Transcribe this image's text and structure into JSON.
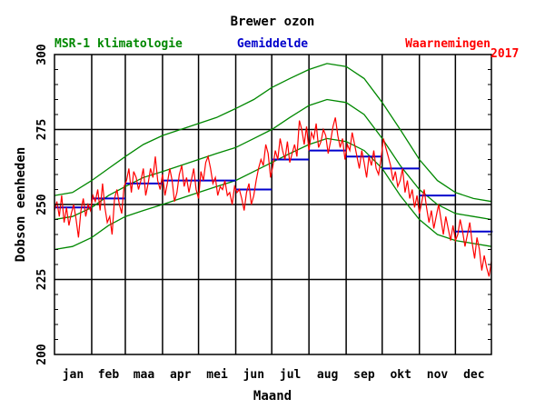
{
  "chart_data": {
    "type": "line",
    "title": "Brewer ozon",
    "ylabel": "Dobson eenheden",
    "xlabel": "Maand",
    "year_label": "2017",
    "ylim": [
      200,
      300
    ],
    "yticks": [
      200,
      225,
      250,
      275,
      300
    ],
    "yticklabels": [
      "200",
      "225",
      "250",
      "275",
      "300"
    ],
    "day_range": [
      1,
      365
    ],
    "months": [
      "jan",
      "feb",
      "maa",
      "apr",
      "mei",
      "jun",
      "jul",
      "aug",
      "sep",
      "okt",
      "nov",
      "dec"
    ],
    "grid": true,
    "legend": [
      {
        "label": "MSR-1 klimatologie",
        "color": "#008800"
      },
      {
        "label": "Gemiddelde",
        "color": "#0000cc"
      },
      {
        "label": "Waarnemingen",
        "color": "#ff0000"
      }
    ],
    "series": [
      {
        "name": "MSR-1 klimatologie",
        "role": "upper",
        "color": "#008800",
        "days": [
          1,
          16,
          32,
          46,
          60,
          75,
          91,
          106,
          121,
          136,
          152,
          167,
          182,
          197,
          213,
          228,
          244,
          259,
          274,
          289,
          305,
          320,
          335,
          350,
          365
        ],
        "values": [
          253,
          254,
          258,
          262,
          266,
          270,
          273,
          275,
          277,
          279,
          282,
          285,
          289,
          292,
          295,
          297,
          296,
          292,
          284,
          275,
          265,
          258,
          254,
          252,
          251
        ]
      },
      {
        "name": "MSR-1 klimatologie",
        "role": "mean",
        "color": "#008800",
        "days": [
          1,
          16,
          32,
          46,
          60,
          75,
          91,
          106,
          121,
          136,
          152,
          167,
          182,
          197,
          213,
          228,
          244,
          259,
          274,
          289,
          305,
          320,
          335,
          350,
          365
        ],
        "values": [
          245,
          246,
          249,
          253,
          256,
          259,
          261,
          263,
          265,
          267,
          269,
          272,
          275,
          279,
          283,
          285,
          284,
          280,
          272,
          263,
          255,
          250,
          247,
          246,
          245
        ]
      },
      {
        "name": "MSR-1 klimatologie",
        "role": "lower",
        "color": "#008800",
        "days": [
          1,
          16,
          32,
          46,
          60,
          75,
          91,
          106,
          121,
          136,
          152,
          167,
          182,
          197,
          213,
          228,
          244,
          259,
          274,
          289,
          305,
          320,
          335,
          350,
          365
        ],
        "values": [
          235,
          236,
          239,
          243,
          246,
          248,
          250,
          252,
          254,
          256,
          258,
          261,
          264,
          267,
          270,
          272,
          271,
          268,
          262,
          253,
          245,
          240,
          238,
          237,
          236
        ]
      },
      {
        "name": "Gemiddelde",
        "color": "#0000cc",
        "days": [
          [
            1,
            31
          ],
          [
            32,
            59
          ],
          [
            60,
            90
          ],
          [
            91,
            120
          ],
          [
            121,
            151
          ],
          [
            152,
            181
          ],
          [
            182,
            212
          ],
          [
            213,
            243
          ],
          [
            244,
            273
          ],
          [
            274,
            304
          ],
          [
            305,
            334
          ],
          [
            335,
            365
          ]
        ],
        "values": [
          249,
          252,
          257,
          258,
          258,
          255,
          265,
          268,
          266,
          262,
          253,
          241
        ]
      },
      {
        "name": "Waarnemingen",
        "color": "#ff0000",
        "days": [
          1,
          3,
          5,
          7,
          9,
          11,
          13,
          15,
          17,
          19,
          21,
          23,
          25,
          27,
          29,
          31,
          33,
          35,
          37,
          39,
          41,
          43,
          45,
          47,
          49,
          51,
          53,
          55,
          57,
          59,
          61,
          63,
          65,
          67,
          69,
          71,
          73,
          75,
          77,
          79,
          81,
          83,
          85,
          87,
          89,
          91,
          93,
          95,
          97,
          99,
          101,
          103,
          105,
          107,
          109,
          111,
          113,
          115,
          117,
          119,
          121,
          123,
          125,
          127,
          129,
          131,
          133,
          135,
          137,
          139,
          141,
          143,
          145,
          147,
          149,
          151,
          153,
          155,
          157,
          159,
          161,
          163,
          165,
          167,
          169,
          171,
          173,
          175,
          177,
          179,
          181,
          183,
          185,
          187,
          189,
          191,
          193,
          195,
          197,
          199,
          201,
          203,
          205,
          207,
          209,
          211,
          213,
          215,
          217,
          219,
          221,
          223,
          225,
          227,
          229,
          231,
          233,
          235,
          237,
          239,
          241,
          243,
          245,
          247,
          249,
          251,
          253,
          255,
          257,
          259,
          261,
          263,
          265,
          267,
          269,
          271,
          273,
          275,
          277,
          279,
          281,
          283,
          285,
          287,
          289,
          291,
          293,
          295,
          297,
          299,
          301,
          303,
          305,
          307,
          309,
          311,
          313,
          315,
          317,
          319,
          321,
          323,
          325,
          327,
          329,
          331,
          333,
          335,
          337,
          339,
          341,
          343,
          345,
          347,
          349,
          351,
          353,
          355,
          357,
          359,
          361,
          363,
          365
        ],
        "values": [
          248,
          251,
          246,
          253,
          244,
          249,
          243,
          247,
          250,
          245,
          239,
          248,
          252,
          246,
          250,
          248,
          253,
          251,
          255,
          248,
          257,
          249,
          244,
          246,
          240,
          252,
          255,
          250,
          247,
          256,
          258,
          262,
          254,
          261,
          259,
          255,
          258,
          262,
          253,
          257,
          262,
          259,
          266,
          258,
          255,
          260,
          253,
          257,
          262,
          258,
          251,
          254,
          260,
          263,
          256,
          259,
          254,
          258,
          262,
          255,
          252,
          261,
          258,
          264,
          266,
          262,
          257,
          259,
          253,
          256,
          255,
          258,
          253,
          254,
          250,
          256,
          254,
          255,
          252,
          248,
          254,
          257,
          250,
          253,
          258,
          262,
          265,
          263,
          270,
          267,
          259,
          263,
          268,
          265,
          272,
          268,
          265,
          271,
          264,
          267,
          270,
          266,
          278,
          275,
          270,
          276,
          268,
          274,
          272,
          277,
          269,
          271,
          275,
          273,
          267,
          271,
          276,
          279,
          273,
          269,
          272,
          265,
          270,
          268,
          274,
          270,
          266,
          262,
          268,
          264,
          259,
          266,
          263,
          268,
          262,
          260,
          265,
          272,
          269,
          266,
          263,
          258,
          261,
          256,
          258,
          262,
          254,
          258,
          252,
          255,
          249,
          253,
          247,
          251,
          255,
          249,
          244,
          248,
          242,
          246,
          250,
          245,
          240,
          246,
          242,
          238,
          243,
          238,
          240,
          245,
          241,
          236,
          240,
          244,
          237,
          232,
          239,
          235,
          228,
          233,
          229,
          226,
          231
        ]
      }
    ]
  }
}
